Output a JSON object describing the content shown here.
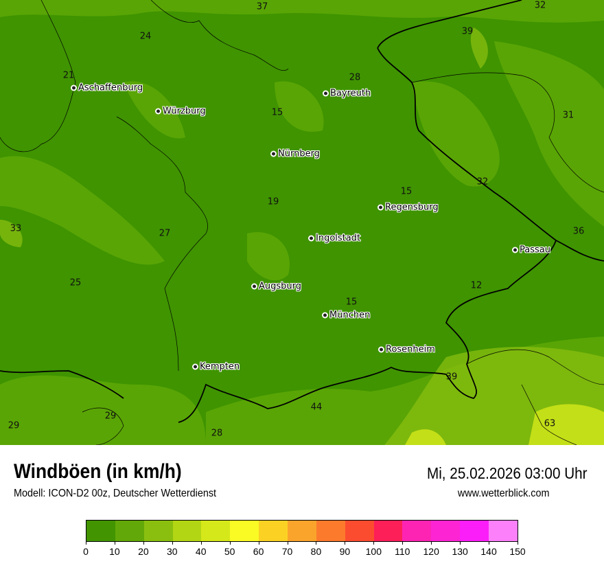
{
  "header": {
    "title": "Windböen (in km/h)",
    "subtitle": "Modell: ICON-D2 00z, Deutscher Wetterdienst",
    "datetime": "Mi, 25.02.2026 03:00 Uhr",
    "website": "www.wetterblick.com"
  },
  "map": {
    "background_color": "#3f9400",
    "cities": [
      {
        "name": "Aschaffenburg"
      },
      {
        "name": "Würzburg"
      },
      {
        "name": "Bayreuth"
      },
      {
        "name": "Nürnberg"
      },
      {
        "name": "Regensburg"
      },
      {
        "name": "Ingolstadt"
      },
      {
        "name": "Passau"
      },
      {
        "name": "Augsburg"
      },
      {
        "name": "München"
      },
      {
        "name": "Rosenheim"
      },
      {
        "name": "Kempten"
      }
    ],
    "values": [
      "37",
      "32",
      "24",
      "39",
      "28",
      "21",
      "15",
      "31",
      "15",
      "32",
      "19",
      "33",
      "27",
      "36",
      "25",
      "12",
      "15",
      "39",
      "29",
      "44",
      "29",
      "28",
      "63"
    ]
  },
  "legend": {
    "ticks": [
      "0",
      "10",
      "20",
      "30",
      "40",
      "50",
      "60",
      "70",
      "80",
      "90",
      "100",
      "110",
      "120",
      "130",
      "140",
      "150"
    ],
    "colors": [
      "#429400",
      "#62a808",
      "#8abf10",
      "#b2d614",
      "#d5e81a",
      "#fafb24",
      "#fbd224",
      "#faa42c",
      "#fb7a2c",
      "#fc4c30",
      "#fd1f58",
      "#fd24b4",
      "#fd24d4",
      "#fb1ef9",
      "#fb80f9"
    ]
  }
}
